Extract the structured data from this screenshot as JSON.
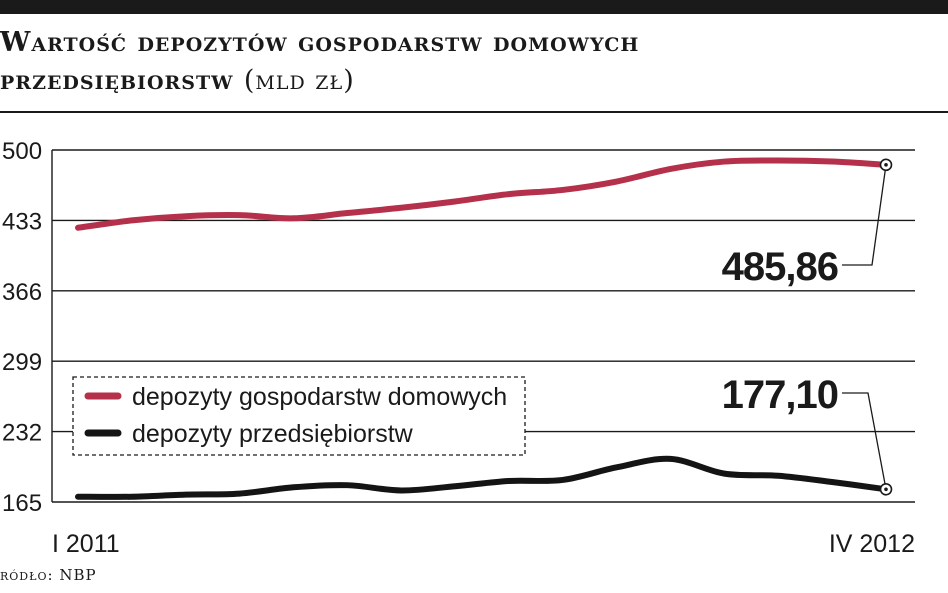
{
  "header": {
    "title_main": "Wartość depozytów gospodarstw domowych",
    "title_line2": "przedsiębiorstw",
    "title_unit": "(mld zł)"
  },
  "footer": {
    "source": "ródło: NBP"
  },
  "colors": {
    "households": "#b5304a",
    "companies": "#141414",
    "grid": "#1a1a1a"
  },
  "chart_data": {
    "type": "line",
    "title": "Wartość depozytów gospodarstw domowych przedsiębiorstw (mld zł)",
    "y_ticks": [
      165,
      232,
      299,
      366,
      433,
      500
    ],
    "y_tick_labels": [
      "165",
      "232",
      "299",
      "366",
      "433",
      "500"
    ],
    "ylim": [
      165,
      500
    ],
    "x_tick_labels": [
      "I 2011",
      "IV 2012"
    ],
    "grid": "horizontal",
    "legend_position": "center-left",
    "n_points": 16,
    "series": [
      {
        "name": "depozyty gospodarstw domowych",
        "color": "#b5304a",
        "values": [
          426,
          433,
          437,
          438,
          435,
          440,
          445,
          451,
          458,
          462,
          470,
          482,
          489,
          490,
          489,
          485.86
        ]
      },
      {
        "name": "depozyty przedsiębiorstw",
        "color": "#141414",
        "values": [
          170,
          170,
          172,
          173,
          179,
          181,
          176,
          180,
          185,
          186,
          198,
          206,
          192,
          190,
          184,
          177.1
        ]
      }
    ],
    "annotations": [
      {
        "series": 0,
        "label": "485,86"
      },
      {
        "series": 1,
        "label": "177,10"
      }
    ]
  }
}
